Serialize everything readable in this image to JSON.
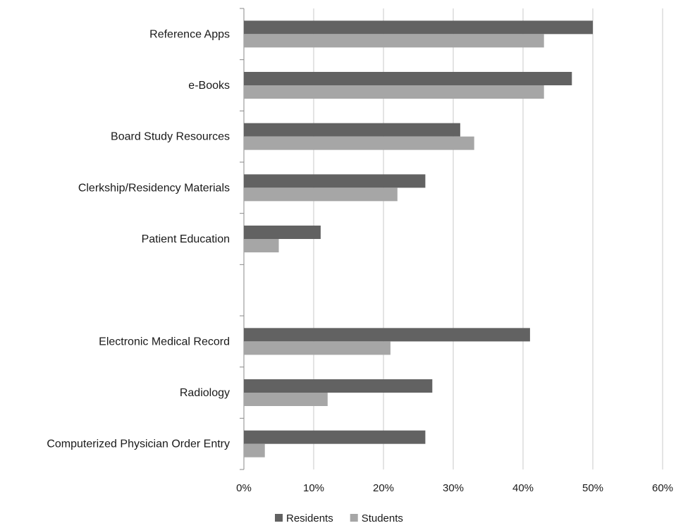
{
  "chart_data": {
    "type": "bar",
    "orientation": "horizontal",
    "categories": [
      "Reference Apps",
      "e-Books",
      "Board Study Resources",
      "Clerkship/Residency Materials",
      "Patient Education",
      "",
      "Electronic Medical Record",
      "Radiology",
      "Computerized Physician Order Entry"
    ],
    "series": [
      {
        "name": "Residents",
        "values": [
          50,
          47,
          31,
          26,
          11,
          null,
          41,
          27,
          26
        ]
      },
      {
        "name": "Students",
        "values": [
          43,
          43,
          33,
          22,
          5,
          null,
          21,
          12,
          3
        ]
      }
    ],
    "xlim": [
      0,
      60
    ],
    "x_ticks": [
      0,
      10,
      20,
      30,
      40,
      50,
      60
    ],
    "x_tick_format": "percent",
    "title": "",
    "xlabel": "",
    "ylabel": "",
    "grid": "vertical",
    "legend_position": "bottom",
    "colors": {
      "Residents": "#626262",
      "Students": "#a6a6a6",
      "grid": "#c8c8c8",
      "axis": "#888888"
    }
  }
}
